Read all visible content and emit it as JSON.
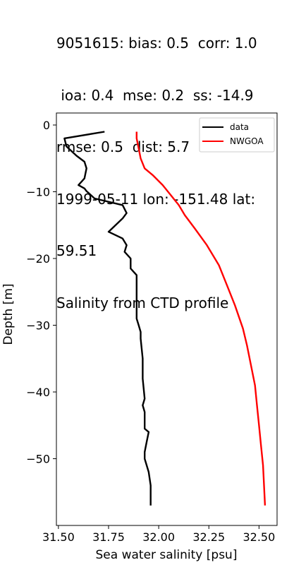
{
  "title_lines": [
    "9051615: bias: 0.5  corr: 1.0",
    " ioa: 0.4  mse: 0.2  ss: -14.9",
    "rmse: 0.5  dist: 5.7",
    "1999-05-11 lon: -151.48 lat:",
    "59.51",
    "Salinity from CTD profile"
  ],
  "chart_data": {
    "type": "line",
    "title": "Salinity from CTD profile",
    "xlabel": "Sea water salinity [psu]",
    "ylabel": "Depth [m]",
    "xlim": [
      31.49,
      32.59
    ],
    "ylim": [
      -60,
      1.8
    ],
    "xticks": [
      31.5,
      31.75,
      32.0,
      32.25,
      32.5
    ],
    "xtick_labels": [
      "31.50",
      "31.75",
      "32.00",
      "32.25",
      "32.50"
    ],
    "yticks": [
      0,
      -10,
      -20,
      -30,
      -40,
      -50
    ],
    "ytick_labels": [
      "0",
      "−10",
      "−20",
      "−30",
      "−40",
      "−50"
    ],
    "grid": false,
    "legend_position": "top-right",
    "series": [
      {
        "name": "data",
        "color": "#000000",
        "x": [
          31.73,
          31.53,
          31.54,
          31.59,
          31.63,
          31.64,
          31.63,
          31.6,
          31.63,
          31.64,
          31.68,
          31.82,
          31.84,
          31.82,
          31.75,
          31.82,
          31.84,
          31.83,
          31.86,
          31.86,
          31.89,
          31.89,
          31.9,
          31.91,
          31.91,
          31.92,
          31.92,
          31.93,
          31.92,
          31.93,
          31.93,
          31.95,
          31.94,
          31.93,
          31.93,
          31.95,
          31.96,
          31.96,
          31.96
        ],
        "y": [
          -1,
          -2,
          -3.2,
          -4.6,
          -5.5,
          -6.5,
          -8,
          -9,
          -9.5,
          -9.9,
          -11,
          -12,
          -13.2,
          -14,
          -16,
          -17,
          -18,
          -19,
          -20,
          -21.5,
          -22.5,
          -29,
          -30,
          -31,
          -32,
          -35,
          -38,
          -41,
          -42,
          -43,
          -45.5,
          -46,
          -47.5,
          -49,
          -50,
          -52,
          -54,
          -55,
          -57
        ]
      },
      {
        "name": "NWGOA",
        "color": "#ff0000",
        "x": [
          31.89,
          31.89,
          31.9,
          31.91,
          31.93,
          31.97,
          32.02,
          32.06,
          32.1,
          32.13,
          32.18,
          32.24,
          32.3,
          32.34,
          32.38,
          32.42,
          32.44,
          32.46,
          32.48,
          32.49,
          32.5,
          32.51,
          32.52,
          32.525,
          32.53
        ],
        "y": [
          -1,
          -2,
          -3.5,
          -5,
          -6.5,
          -7.5,
          -9,
          -10.5,
          -12,
          -13.5,
          -15.5,
          -18,
          -21,
          -24,
          -27,
          -30.5,
          -33,
          -36,
          -39,
          -42,
          -45,
          -48,
          -51,
          -54,
          -57
        ]
      }
    ]
  }
}
